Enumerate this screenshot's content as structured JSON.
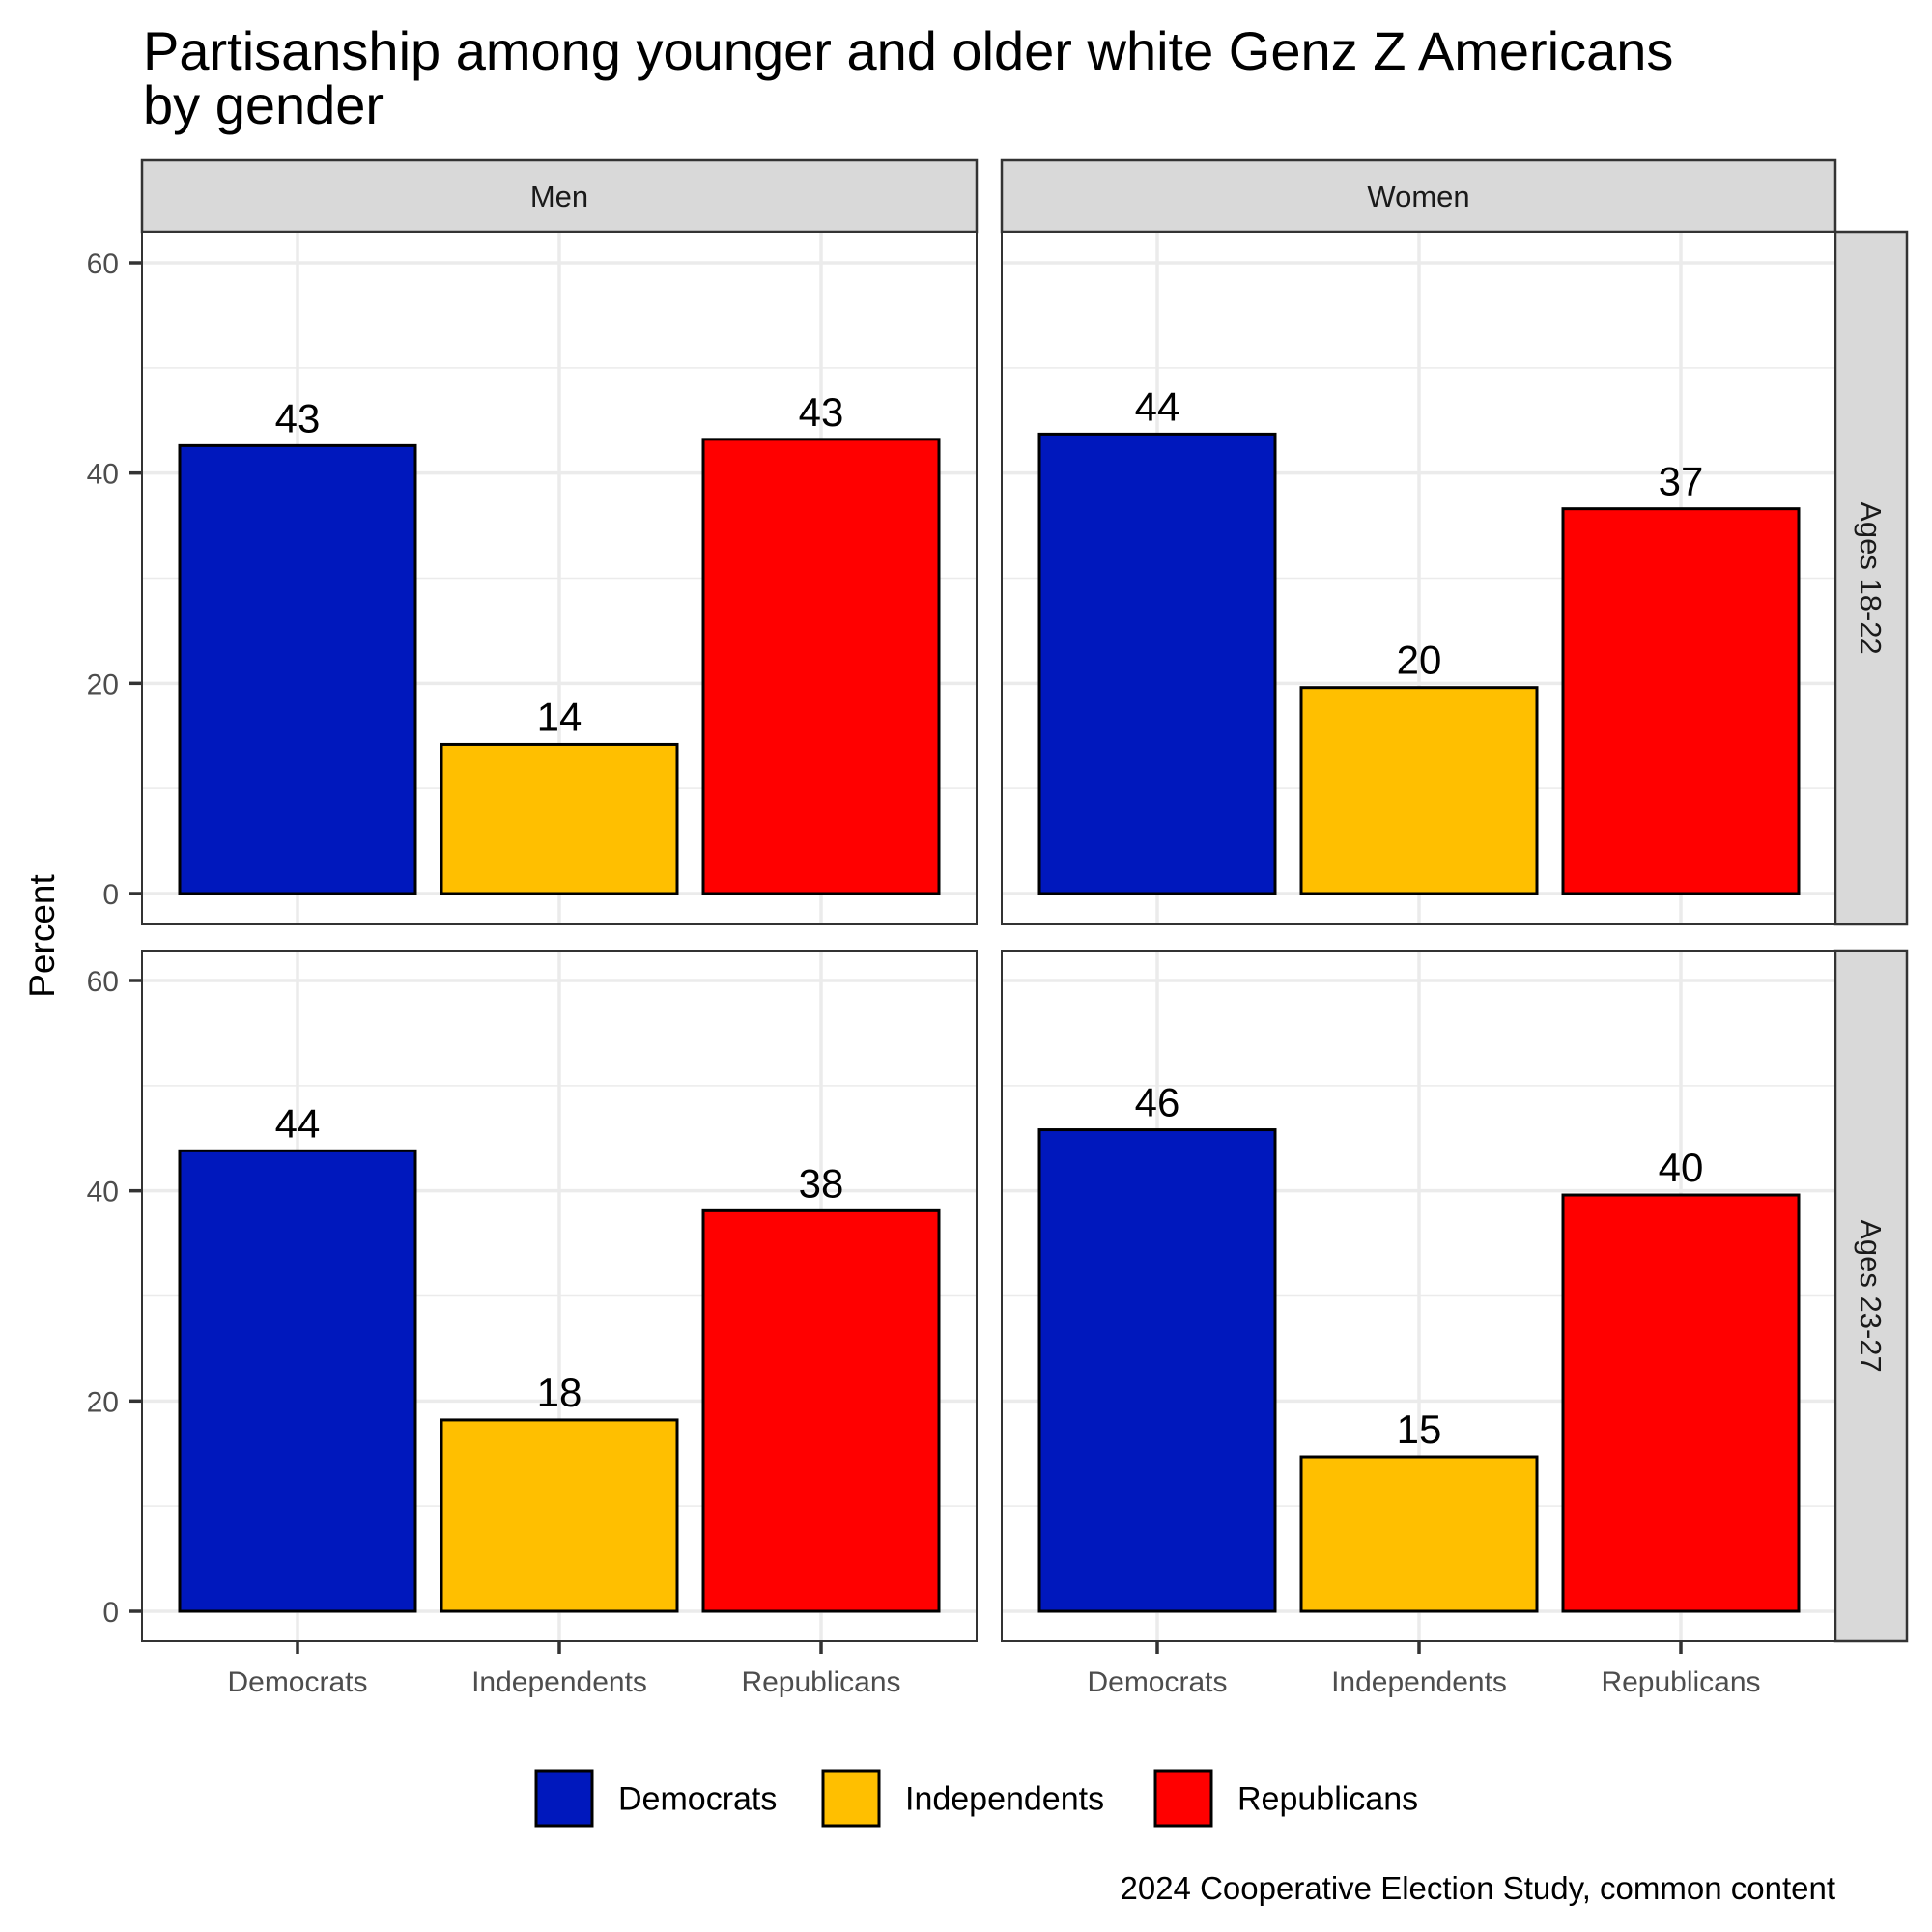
{
  "chart_data": {
    "type": "bar",
    "title": "Partisanship among younger and older white Genz Z Americans\nby gender",
    "title_lines": [
      "Partisanship among younger and older white Genz Z Americans",
      "by gender"
    ],
    "xlabel": "",
    "ylabel": "Percent",
    "ylim": [
      0,
      63
    ],
    "yticks": [
      0,
      20,
      40,
      60
    ],
    "grid": true,
    "categories": [
      "Democrats",
      "Independents",
      "Republicans"
    ],
    "colors": {
      "Democrats": "#0018BD",
      "Independents": "#FFBF00",
      "Republicans": "#FF0000"
    },
    "facet_columns": [
      "Men",
      "Women"
    ],
    "facet_rows": [
      "Ages 18-22",
      "Ages 23-27"
    ],
    "panels": [
      {
        "column": "Men",
        "row": "Ages 18-22",
        "values": [
          42.6,
          14.2,
          43.2
        ],
        "labels": [
          "43",
          "14",
          "43"
        ]
      },
      {
        "column": "Women",
        "row": "Ages 18-22",
        "values": [
          43.7,
          19.6,
          36.6
        ],
        "labels": [
          "44",
          "20",
          "37"
        ]
      },
      {
        "column": "Men",
        "row": "Ages 23-27",
        "values": [
          43.8,
          18.2,
          38.1
        ],
        "labels": [
          "44",
          "18",
          "38"
        ]
      },
      {
        "column": "Women",
        "row": "Ages 23-27",
        "values": [
          45.8,
          14.7,
          39.6
        ],
        "labels": [
          "46",
          "15",
          "40"
        ]
      }
    ],
    "legend": {
      "position": "bottom",
      "entries": [
        "Democrats",
        "Independents",
        "Republicans"
      ]
    },
    "caption": "2024 Cooperative Election Study, common content"
  }
}
